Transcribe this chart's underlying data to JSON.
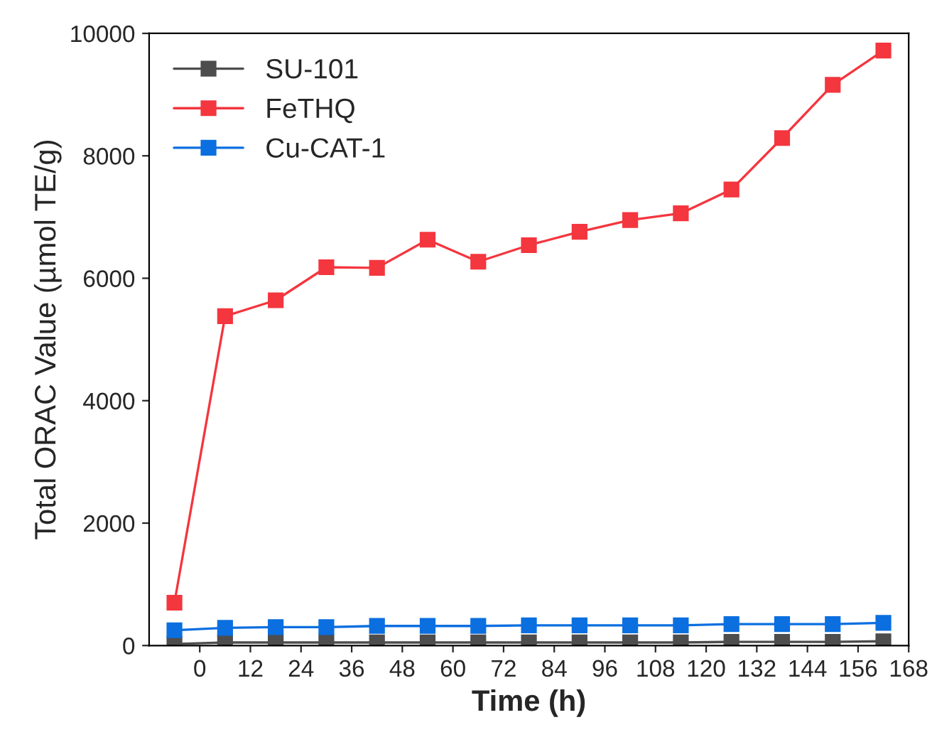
{
  "chart_data": {
    "type": "line",
    "xlabel": "Time (h)",
    "ylabel": "Total ORAC Value (µmol TE/g)",
    "x": [
      -6,
      6,
      18,
      30,
      42,
      54,
      66,
      78,
      90,
      102,
      114,
      126,
      138,
      150,
      162
    ],
    "series": [
      {
        "name": "SU-101",
        "color": "#4d4d4d",
        "values": [
          25,
          50,
          50,
          50,
          50,
          50,
          50,
          50,
          50,
          50,
          50,
          60,
          60,
          60,
          70
        ]
      },
      {
        "name": "FeTHQ",
        "color": "#f4363e",
        "values": [
          700,
          5380,
          5640,
          6180,
          6170,
          6630,
          6270,
          6540,
          6760,
          6950,
          7060,
          7450,
          8290,
          9160,
          9720
        ]
      },
      {
        "name": "Cu-CAT-1",
        "color": "#0b6fe0",
        "values": [
          250,
          290,
          300,
          300,
          320,
          320,
          320,
          330,
          330,
          330,
          330,
          350,
          350,
          350,
          370
        ]
      }
    ],
    "xlim": [
      -12,
      168
    ],
    "xticks": [
      0,
      12,
      24,
      36,
      48,
      60,
      72,
      84,
      96,
      108,
      120,
      132,
      144,
      156,
      168
    ],
    "ylim": [
      0,
      10000
    ],
    "yticks": [
      0,
      2000,
      4000,
      6000,
      8000,
      10000
    ],
    "marker": "square",
    "line_style": "solid",
    "legend": "top left",
    "grid": false
  }
}
